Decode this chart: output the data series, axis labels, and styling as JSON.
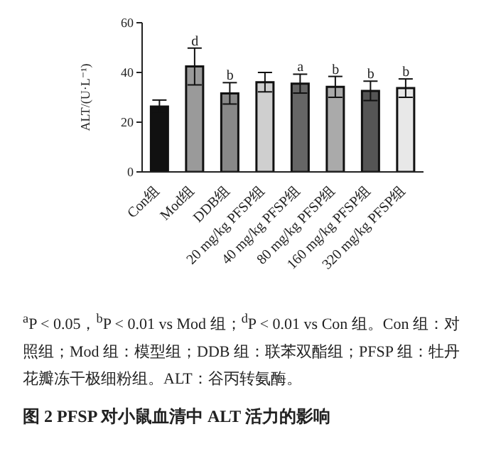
{
  "chart_data": {
    "type": "bar",
    "title": "图 2 PFSP 对小鼠血清中 ALT 活力的影响",
    "ylabel": "ALT/(U·L⁻¹)",
    "categories": [
      "Con组",
      "Mod组",
      "DDB组",
      "20 mg/kg PFSP组",
      "40 mg/kg PFSP组",
      "80 mg/kg PFSP组",
      "160 mg/kg PFSP组",
      "320 mg/kg PFSP组"
    ],
    "values": [
      26.3,
      42.4,
      31.6,
      36.1,
      35.5,
      34.2,
      32.6,
      33.7
    ],
    "colors": [
      "#111111",
      "#9a9a9a",
      "#888888",
      "#cfcfcf",
      "#666666",
      "#aaaaaa",
      "#555555",
      "#e8e8e8"
    ],
    "errors": [
      2.6,
      7.4,
      4.3,
      3.9,
      3.8,
      4.2,
      3.9,
      3.7
    ],
    "ylim": [
      0,
      60
    ],
    "yticks": [
      0,
      20,
      40,
      60
    ],
    "grid": false,
    "legend": false,
    "annotations": [
      {
        "text": "d",
        "x": "Mod组",
        "y": 49.8
      },
      {
        "text": "b",
        "x": "DDB组",
        "y": 35.9
      },
      {
        "text": "a",
        "x": "40 mg/kg PFSP组",
        "y": 39.3
      },
      {
        "text": "b",
        "x": "80 mg/kg PFSP组",
        "y": 38.4
      },
      {
        "text": "b",
        "x": "160 mg/kg PFSP组",
        "y": 36.5
      },
      {
        "text": "b",
        "x": "320 mg/kg PFSP组",
        "y": 37.4
      },
      "$^{a}$P < 0.05，$^{b}$P < 0.01 vs Mod 组；$^{d}$P < 0.01 vs Con 组。Con 组：对照组；Mod 组：模型组；DDB 组：联苯双酯组；PFSP 组：牡丹花瓣冻干极细粉组。ALT：谷丙转氨酶。"
    ]
  }
}
